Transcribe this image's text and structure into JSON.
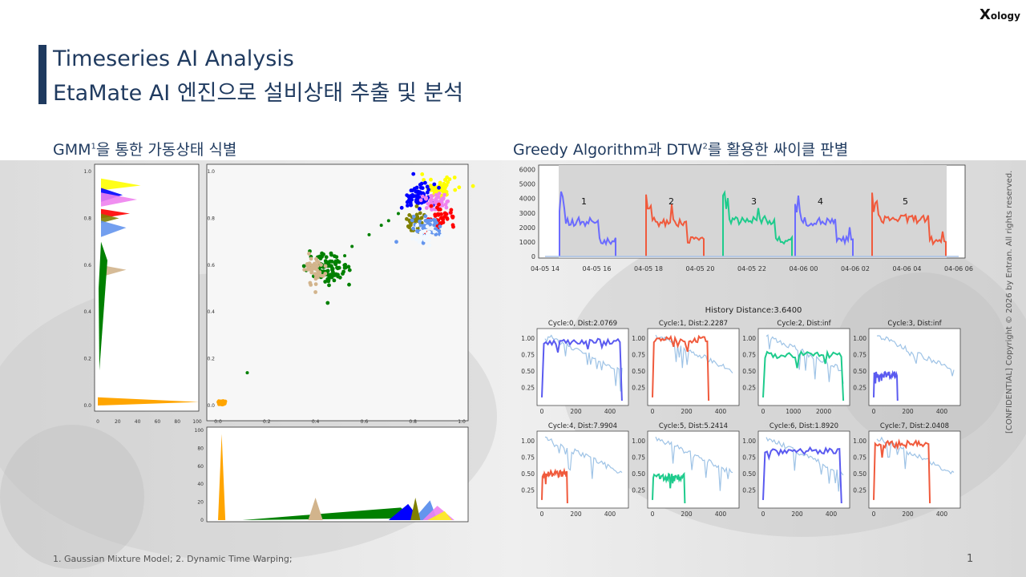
{
  "slide": {
    "logo": "ology",
    "title_line1": "Timeseries AI Analysis",
    "title_line2": "EtaMate AI 엔진으로 설비상태 추출 및 분석",
    "left_section": {
      "text": "GMM",
      "sup": "1",
      "rest": "을 통한 가동상태 식별"
    },
    "right_section": {
      "text": "Greedy Algorithm과 DTW",
      "sup": "2",
      "rest": "를 활용한 싸이클 판별"
    },
    "footnote": "1. Gaussian Mixture Model;   2. Dynamic Time Warping;",
    "page_number": "1",
    "copyright": "[CONFIDENTIAL] Copyright © 2026 by Entran. All rights reserved."
  },
  "chart_data": [
    {
      "type": "scatter",
      "name": "gmm-scatter",
      "xlim": [
        0,
        1
      ],
      "ylim": [
        0,
        1
      ],
      "x_ticks": [
        "0.0",
        "0.2",
        "0.4",
        "0.6",
        "0.8",
        "1.0"
      ],
      "y_ticks": [
        "0.0",
        "0.2",
        "0.4",
        "0.6",
        "0.8",
        "1.0"
      ],
      "clusters": [
        {
          "color": "#ffff00",
          "cx": 0.91,
          "cy": 0.93,
          "sx": 0.035,
          "sy": 0.02,
          "n": 60
        },
        {
          "color": "#0000ff",
          "cx": 0.82,
          "cy": 0.89,
          "sx": 0.035,
          "sy": 0.03,
          "n": 70
        },
        {
          "color": "#ee82ee",
          "cx": 0.9,
          "cy": 0.87,
          "sx": 0.03,
          "sy": 0.02,
          "n": 50
        },
        {
          "color": "#ff0000",
          "cx": 0.92,
          "cy": 0.81,
          "sx": 0.025,
          "sy": 0.02,
          "n": 40
        },
        {
          "color": "#808000",
          "cx": 0.81,
          "cy": 0.79,
          "sx": 0.02,
          "sy": 0.02,
          "n": 35
        },
        {
          "color": "#6495ed",
          "cx": 0.86,
          "cy": 0.76,
          "sx": 0.03,
          "sy": 0.025,
          "n": 50
        },
        {
          "color": "#f0f8ff",
          "cx": 0.84,
          "cy": 0.73,
          "sx": 0.025,
          "sy": 0.02,
          "n": 25
        },
        {
          "color": "#008000",
          "cx": 0.46,
          "cy": 0.58,
          "sx": 0.045,
          "sy": 0.035,
          "n": 90
        },
        {
          "color": "#d2b48c",
          "cx": 0.4,
          "cy": 0.58,
          "sx": 0.02,
          "sy": 0.03,
          "n": 50
        },
        {
          "color": "#ffa500",
          "cx": 0.015,
          "cy": 0.01,
          "sx": 0.008,
          "sy": 0.006,
          "n": 20
        }
      ]
    },
    {
      "type": "area",
      "name": "gmm-y-marginal",
      "ylim": [
        0,
        1
      ],
      "xlim": [
        0,
        100
      ],
      "x_ticks": [
        "0",
        "20",
        "40",
        "60",
        "80",
        "100"
      ],
      "y_ticks": [
        "0.0",
        "0.2",
        "0.4",
        "0.6",
        "0.8",
        "1.0"
      ]
    },
    {
      "type": "area",
      "name": "gmm-x-marginal",
      "ylim": [
        0,
        100
      ],
      "y_ticks": [
        "0",
        "20",
        "40",
        "60",
        "80",
        "100"
      ]
    },
    {
      "type": "line",
      "name": "cycle-timeline",
      "x_ticks": [
        "04-05 14",
        "04-05 16",
        "04-05 18",
        "04-05 20",
        "04-05 22",
        "04-06 00",
        "04-06 02",
        "04-06 04",
        "04-06 06"
      ],
      "y_ticks": [
        "0",
        "1000",
        "2000",
        "3000",
        "4000",
        "5000",
        "6000"
      ],
      "ylim": [
        0,
        6200
      ],
      "cycle_labels": [
        "1",
        "2",
        "3",
        "4",
        "5"
      ],
      "cycle_colors": [
        "#6b6bff",
        "#f05a3c",
        "#1ecb8c",
        "#6b6bff",
        "#f05a3c"
      ],
      "cycle_levels": [
        2400,
        2300,
        2500,
        2400,
        2600
      ]
    },
    {
      "type": "line",
      "name": "cycle-comparison",
      "title": "History Distance:3.6400",
      "y_ticks": [
        "0.25",
        "0.50",
        "0.75",
        "1.00"
      ],
      "panels": [
        {
          "title": "Cycle:0, Dist:2.0769",
          "color": "#5a5af0",
          "x_ticks": [
            "0",
            "200",
            "400"
          ],
          "xmax": 480,
          "level": 0.95,
          "end": 470
        },
        {
          "title": "Cycle:1, Dist:2.2287",
          "color": "#f05a3c",
          "x_ticks": [
            "0",
            "200",
            "400"
          ],
          "xmax": 480,
          "level": 0.98,
          "end": 330
        },
        {
          "title": "Cycle:2, Dist:inf",
          "color": "#1ecb8c",
          "x_ticks": [
            "0",
            "1000",
            "2000"
          ],
          "xmax": 2700,
          "level": 0.75,
          "end": 2650
        },
        {
          "title": "Cycle:3, Dist:inf",
          "color": "#5a5af0",
          "x_ticks": [
            "0",
            "200",
            "400"
          ],
          "xmax": 480,
          "level": 0.45,
          "end": 140
        },
        {
          "title": "Cycle:4, Dist:7.9904",
          "color": "#f05a3c",
          "x_ticks": [
            "0",
            "200",
            "400"
          ],
          "xmax": 480,
          "level": 0.5,
          "end": 150
        },
        {
          "title": "Cycle:5, Dist:5.2414",
          "color": "#1ecb8c",
          "x_ticks": [
            "0",
            "200",
            "400"
          ],
          "xmax": 480,
          "level": 0.45,
          "end": 190
        },
        {
          "title": "Cycle:6, Dist:1.8920",
          "color": "#5a5af0",
          "x_ticks": [
            "0",
            "200",
            "400"
          ],
          "xmax": 480,
          "level": 0.85,
          "end": 460
        },
        {
          "title": "Cycle:7, Dist:2.0408",
          "color": "#f05a3c",
          "x_ticks": [
            "0",
            "200",
            "400"
          ],
          "xmax": 480,
          "level": 0.95,
          "end": 330
        }
      ]
    }
  ]
}
